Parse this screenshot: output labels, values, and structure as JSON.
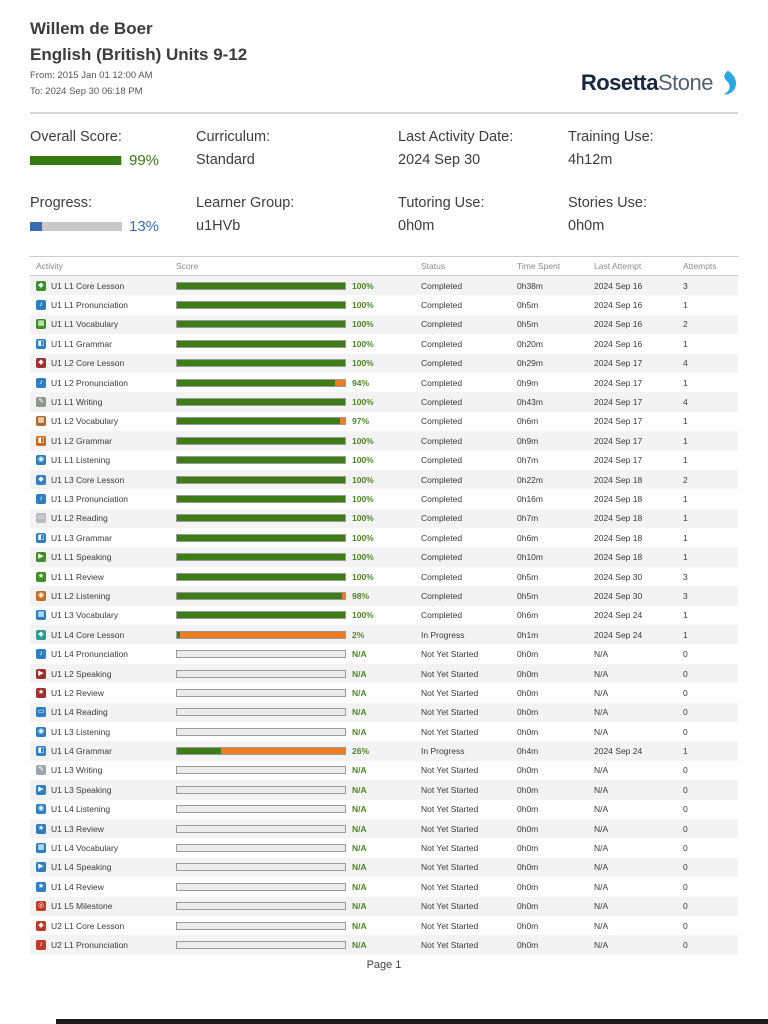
{
  "header": {
    "student_name": "Willem de Boer",
    "course_title": "English (British) Units 9-12",
    "date_from": "From: 2015 Jan 01 12:00 AM",
    "date_to": "To: 2024 Sep 30 06:18 PM",
    "logo": {
      "bold": "Rosetta",
      "light": "Stone",
      "swoosh_color": "#2aa7df"
    }
  },
  "colors": {
    "score_green": "#3e7c15",
    "score_orange": "#ed7d23",
    "score_label_green": "#4c8527",
    "summary_green": "#377a12",
    "summary_blue": "#3a6cb5"
  },
  "summary": {
    "cells": [
      {
        "key": "overall-score",
        "label": "Overall Score:",
        "value": "99%",
        "bar_percent": 99,
        "color": "#377a12"
      },
      {
        "key": "curriculum",
        "label": "Curriculum:",
        "value": "Standard",
        "bar_percent": null,
        "color": null
      },
      {
        "key": "last-activity-date",
        "label": "Last Activity Date:",
        "value": "2024 Sep 30",
        "bar_percent": null,
        "color": null
      },
      {
        "key": "training-use",
        "label": "Training Use:",
        "value": "4h12m",
        "bar_percent": null,
        "color": null
      },
      {
        "key": "progress",
        "label": "Progress:",
        "value": "13%",
        "bar_percent": 13,
        "color": "#3a6cb5"
      },
      {
        "key": "learner-group",
        "label": "Learner Group:",
        "value": "u1HVb",
        "bar_percent": null,
        "color": null
      },
      {
        "key": "tutoring-use",
        "label": "Tutoring Use:",
        "value": "0h0m",
        "bar_percent": null,
        "color": null
      },
      {
        "key": "stories-use",
        "label": "Stories Use:",
        "value": "0h0m",
        "bar_percent": null,
        "color": null
      }
    ]
  },
  "icons": {
    "core-lesson": "◆",
    "pronunciation": "♪",
    "vocabulary": "▦",
    "grammar": "◧",
    "writing": "✎",
    "listening": "◉",
    "reading": "▭",
    "speaking": "▶",
    "review": "★",
    "milestone": "◎"
  },
  "table": {
    "columns": [
      "Activity",
      "Score",
      "Status",
      "Time Spent",
      "Last Attempt",
      "Attempts"
    ],
    "rows": [
      {
        "activity": "U1 L1 Core Lesson",
        "icon": "core-lesson",
        "icon_color": "#3f8f29",
        "score": 100,
        "score_label": "100%",
        "status": "Completed",
        "time_spent": "0h38m",
        "last_attempt": "2024 Sep 16",
        "attempts": "3"
      },
      {
        "activity": "U1 L1 Pronunciation",
        "icon": "pronunciation",
        "icon_color": "#2d7fc1",
        "score": 100,
        "score_label": "100%",
        "status": "Completed",
        "time_spent": "0h5m",
        "last_attempt": "2024 Sep 16",
        "attempts": "1"
      },
      {
        "activity": "U1 L1 Vocabulary",
        "icon": "vocabulary",
        "icon_color": "#3f8f29",
        "score": 100,
        "score_label": "100%",
        "status": "Completed",
        "time_spent": "0h5m",
        "last_attempt": "2024 Sep 16",
        "attempts": "2"
      },
      {
        "activity": "U1 L1 Grammar",
        "icon": "grammar",
        "icon_color": "#2d7fc1",
        "score": 100,
        "score_label": "100%",
        "status": "Completed",
        "time_spent": "0h20m",
        "last_attempt": "2024 Sep 16",
        "attempts": "1"
      },
      {
        "activity": "U1 L2 Core Lesson",
        "icon": "core-lesson",
        "icon_color": "#a03030",
        "score": 100,
        "score_label": "100%",
        "status": "Completed",
        "time_spent": "0h29m",
        "last_attempt": "2024 Sep 17",
        "attempts": "4"
      },
      {
        "activity": "U1 L2 Pronunciation",
        "icon": "pronunciation",
        "icon_color": "#2d7fc1",
        "score": 94,
        "score_label": "94%",
        "status": "Completed",
        "time_spent": "0h9m",
        "last_attempt": "2024 Sep 17",
        "attempts": "1"
      },
      {
        "activity": "U1 L1 Writing",
        "icon": "writing",
        "icon_color": "#8a9a8a",
        "score": 100,
        "score_label": "100%",
        "status": "Completed",
        "time_spent": "0h43m",
        "last_attempt": "2024 Sep 17",
        "attempts": "4"
      },
      {
        "activity": "U1 L2 Vocabulary",
        "icon": "vocabulary",
        "icon_color": "#b06a2a",
        "score": 97,
        "score_label": "97%",
        "status": "Completed",
        "time_spent": "0h6m",
        "last_attempt": "2024 Sep 17",
        "attempts": "1"
      },
      {
        "activity": "U1 L2 Grammar",
        "icon": "grammar",
        "icon_color": "#c96a1e",
        "score": 100,
        "score_label": "100%",
        "status": "Completed",
        "time_spent": "0h9m",
        "last_attempt": "2024 Sep 17",
        "attempts": "1"
      },
      {
        "activity": "U1 L1 Listening",
        "icon": "listening",
        "icon_color": "#2d7fc1",
        "score": 100,
        "score_label": "100%",
        "status": "Completed",
        "time_spent": "0h7m",
        "last_attempt": "2024 Sep 17",
        "attempts": "1"
      },
      {
        "activity": "U1 L3 Core Lesson",
        "icon": "core-lesson",
        "icon_color": "#3a7fc1",
        "score": 100,
        "score_label": "100%",
        "status": "Completed",
        "time_spent": "0h22m",
        "last_attempt": "2024 Sep 18",
        "attempts": "2"
      },
      {
        "activity": "U1 L3 Pronunciation",
        "icon": "pronunciation",
        "icon_color": "#2d7fc1",
        "score": 100,
        "score_label": "100%",
        "status": "Completed",
        "time_spent": "0h16m",
        "last_attempt": "2024 Sep 18",
        "attempts": "1"
      },
      {
        "activity": "U1 L2 Reading",
        "icon": "reading",
        "icon_color": "#b5bcc4",
        "score": 100,
        "score_label": "100%",
        "status": "Completed",
        "time_spent": "0h7m",
        "last_attempt": "2024 Sep 18",
        "attempts": "1"
      },
      {
        "activity": "U1 L3 Grammar",
        "icon": "grammar",
        "icon_color": "#2d7fc1",
        "score": 100,
        "score_label": "100%",
        "status": "Completed",
        "time_spent": "0h6m",
        "last_attempt": "2024 Sep 18",
        "attempts": "1"
      },
      {
        "activity": "U1 L1 Speaking",
        "icon": "speaking",
        "icon_color": "#3f8f29",
        "score": 100,
        "score_label": "100%",
        "status": "Completed",
        "time_spent": "0h10m",
        "last_attempt": "2024 Sep 18",
        "attempts": "1"
      },
      {
        "activity": "U1 L1 Review",
        "icon": "review",
        "icon_color": "#3f8f29",
        "score": 100,
        "score_label": "100%",
        "status": "Completed",
        "time_spent": "0h5m",
        "last_attempt": "2024 Sep 30",
        "attempts": "3"
      },
      {
        "activity": "U1 L2 Listening",
        "icon": "listening",
        "icon_color": "#c96a1e",
        "score": 98,
        "score_label": "98%",
        "status": "Completed",
        "time_spent": "0h5m",
        "last_attempt": "2024 Sep 30",
        "attempts": "3"
      },
      {
        "activity": "U1 L3 Vocabulary",
        "icon": "vocabulary",
        "icon_color": "#2d7fc1",
        "score": 100,
        "score_label": "100%",
        "status": "Completed",
        "time_spent": "0h6m",
        "last_attempt": "2024 Sep 24",
        "attempts": "1"
      },
      {
        "activity": "U1 L4 Core Lesson",
        "icon": "core-lesson",
        "icon_color": "#2a9d8f",
        "score": 2,
        "score_label": "2%",
        "status": "In Progress",
        "time_spent": "0h1m",
        "last_attempt": "2024 Sep 24",
        "attempts": "1"
      },
      {
        "activity": "U1 L4 Pronunciation",
        "icon": "pronunciation",
        "icon_color": "#2d7fc1",
        "score": null,
        "score_label": "N/A",
        "status": "Not Yet Started",
        "time_spent": "0h0m",
        "last_attempt": "N/A",
        "attempts": "0"
      },
      {
        "activity": "U1 L2 Speaking",
        "icon": "speaking",
        "icon_color": "#a03030",
        "score": null,
        "score_label": "N/A",
        "status": "Not Yet Started",
        "time_spent": "0h0m",
        "last_attempt": "N/A",
        "attempts": "0"
      },
      {
        "activity": "U1 L2 Review",
        "icon": "review",
        "icon_color": "#a03030",
        "score": null,
        "score_label": "N/A",
        "status": "Not Yet Started",
        "time_spent": "0h0m",
        "last_attempt": "N/A",
        "attempts": "0"
      },
      {
        "activity": "U1 L4 Reading",
        "icon": "reading",
        "icon_color": "#2d7fc1",
        "score": null,
        "score_label": "N/A",
        "status": "Not Yet Started",
        "time_spent": "0h0m",
        "last_attempt": "N/A",
        "attempts": "0"
      },
      {
        "activity": "U1 L3 Listening",
        "icon": "listening",
        "icon_color": "#2d7fc1",
        "score": null,
        "score_label": "N/A",
        "status": "Not Yet Started",
        "time_spent": "0h0m",
        "last_attempt": "N/A",
        "attempts": "0"
      },
      {
        "activity": "U1 L4 Grammar",
        "icon": "grammar",
        "icon_color": "#2d7fc1",
        "score": 26,
        "score_label": "26%",
        "status": "In Progress",
        "time_spent": "0h4m",
        "last_attempt": "2024 Sep 24",
        "attempts": "1"
      },
      {
        "activity": "U1 L3 Writing",
        "icon": "writing",
        "icon_color": "#9aa5ad",
        "score": null,
        "score_label": "N/A",
        "status": "Not Yet Started",
        "time_spent": "0h0m",
        "last_attempt": "N/A",
        "attempts": "0"
      },
      {
        "activity": "U1 L3 Speaking",
        "icon": "speaking",
        "icon_color": "#2d7fc1",
        "score": null,
        "score_label": "N/A",
        "status": "Not Yet Started",
        "time_spent": "0h0m",
        "last_attempt": "N/A",
        "attempts": "0"
      },
      {
        "activity": "U1 L4 Listening",
        "icon": "listening",
        "icon_color": "#2d7fc1",
        "score": null,
        "score_label": "N/A",
        "status": "Not Yet Started",
        "time_spent": "0h0m",
        "last_attempt": "N/A",
        "attempts": "0"
      },
      {
        "activity": "U1 L3 Review",
        "icon": "review",
        "icon_color": "#2d7fc1",
        "score": null,
        "score_label": "N/A",
        "status": "Not Yet Started",
        "time_spent": "0h0m",
        "last_attempt": "N/A",
        "attempts": "0"
      },
      {
        "activity": "U1 L4 Vocabulary",
        "icon": "vocabulary",
        "icon_color": "#2d7fc1",
        "score": null,
        "score_label": "N/A",
        "status": "Not Yet Started",
        "time_spent": "0h0m",
        "last_attempt": "N/A",
        "attempts": "0"
      },
      {
        "activity": "U1 L4 Speaking",
        "icon": "speaking",
        "icon_color": "#2d7fc1",
        "score": null,
        "score_label": "N/A",
        "status": "Not Yet Started",
        "time_spent": "0h0m",
        "last_attempt": "N/A",
        "attempts": "0"
      },
      {
        "activity": "U1 L4 Review",
        "icon": "review",
        "icon_color": "#2d7fc1",
        "score": null,
        "score_label": "N/A",
        "status": "Not Yet Started",
        "time_spent": "0h0m",
        "last_attempt": "N/A",
        "attempts": "0"
      },
      {
        "activity": "U1 L5 Milestone",
        "icon": "milestone",
        "icon_color": "#c0392b",
        "score": null,
        "score_label": "N/A",
        "status": "Not Yet Started",
        "time_spent": "0h0m",
        "last_attempt": "N/A",
        "attempts": "0"
      },
      {
        "activity": "U2 L1 Core Lesson",
        "icon": "core-lesson",
        "icon_color": "#c0392b",
        "score": null,
        "score_label": "N/A",
        "status": "Not Yet Started",
        "time_spent": "0h0m",
        "last_attempt": "N/A",
        "attempts": "0"
      },
      {
        "activity": "U2 L1 Pronunciation",
        "icon": "pronunciation",
        "icon_color": "#c0392b",
        "score": null,
        "score_label": "N/A",
        "status": "Not Yet Started",
        "time_spent": "0h0m",
        "last_attempt": "N/A",
        "attempts": "0"
      }
    ]
  },
  "footer": {
    "page_label": "Page 1"
  }
}
